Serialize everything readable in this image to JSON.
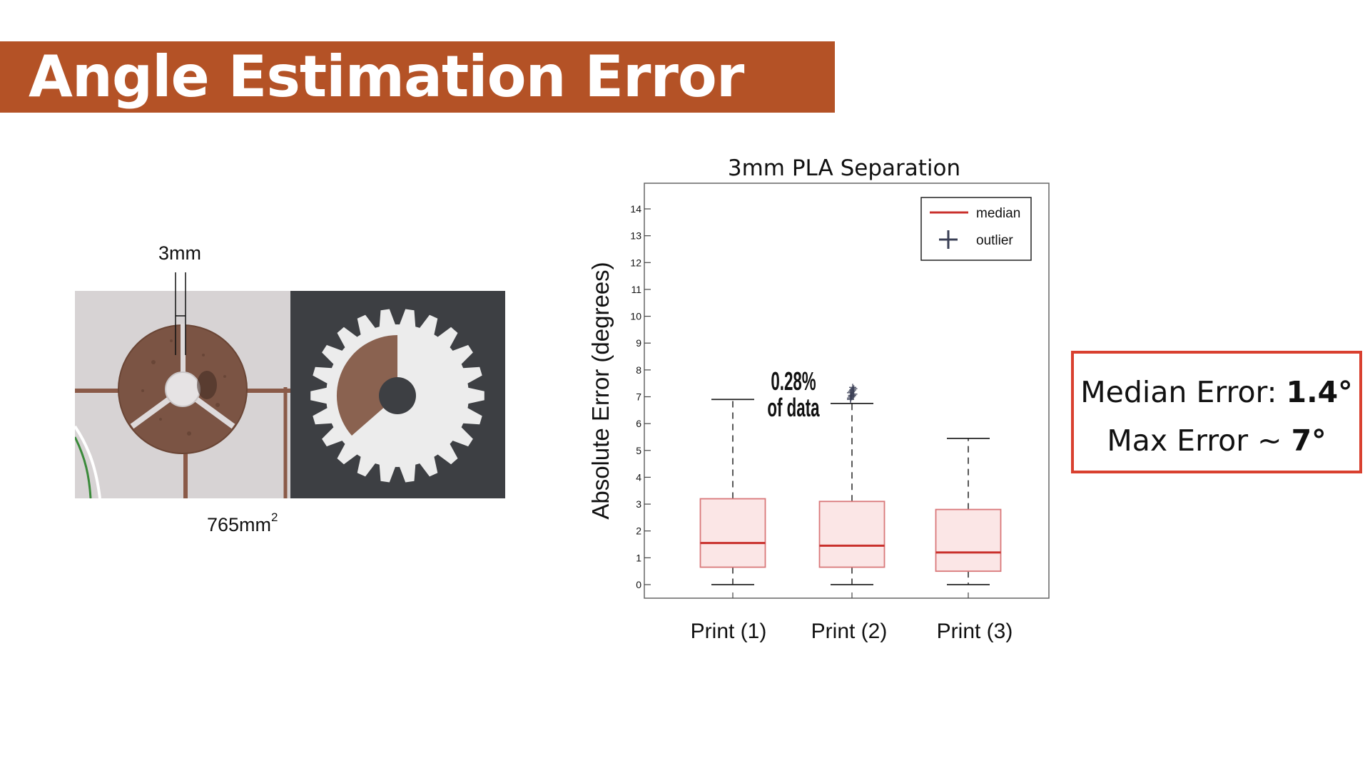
{
  "slide": {
    "title": "Angle Estimation Error"
  },
  "photo": {
    "width_label": "3mm",
    "area_label_number": "765mm",
    "area_label_sup": "2"
  },
  "summary": {
    "median_label": "Median Error:",
    "median_value": "1.4°",
    "max_label": "Max Error ~",
    "max_value": "7°"
  },
  "chart_data": {
    "type": "box",
    "title": "3mm PLA Separation",
    "xlabel": "",
    "ylabel": "Absolute Error (degrees)",
    "ylim": [
      -0.5,
      15
    ],
    "yticks": [
      0,
      1,
      2,
      3,
      4,
      5,
      6,
      7,
      8,
      9,
      10,
      11,
      12,
      13,
      14
    ],
    "categories": [
      "Print (1)",
      "Print (2)",
      "Print (3)"
    ],
    "boxes": [
      {
        "category": "Print (1)",
        "whisker_low": 0,
        "q1": 0.65,
        "median": 1.55,
        "q3": 3.2,
        "whisker_high": 6.9,
        "outliers": []
      },
      {
        "category": "Print (2)",
        "whisker_low": 0,
        "q1": 0.65,
        "median": 1.45,
        "q3": 3.1,
        "whisker_high": 6.75,
        "outliers": [
          6.9,
          7.0,
          7.05,
          7.1,
          7.15,
          7.2,
          7.25,
          7.3,
          6.95,
          7.05,
          7.35
        ]
      },
      {
        "category": "Print (3)",
        "whisker_low": 0,
        "q1": 0.5,
        "median": 1.2,
        "q3": 2.8,
        "whisker_high": 5.45,
        "outliers": []
      }
    ],
    "legend": {
      "position": "top-right",
      "entries": [
        {
          "label": "median",
          "marker": "line"
        },
        {
          "label": "outlier",
          "marker": "plus"
        }
      ]
    },
    "annotations": [
      {
        "text_line1": "0.28%",
        "text_line2": "of data"
      }
    ],
    "colors": {
      "box_fill": "#fbe6e6",
      "box_edge": "#d9787a",
      "median": "#c9302c",
      "whisker": "#222222",
      "outlier": "#3a3f55",
      "frame": "#666666"
    },
    "grid": false
  }
}
